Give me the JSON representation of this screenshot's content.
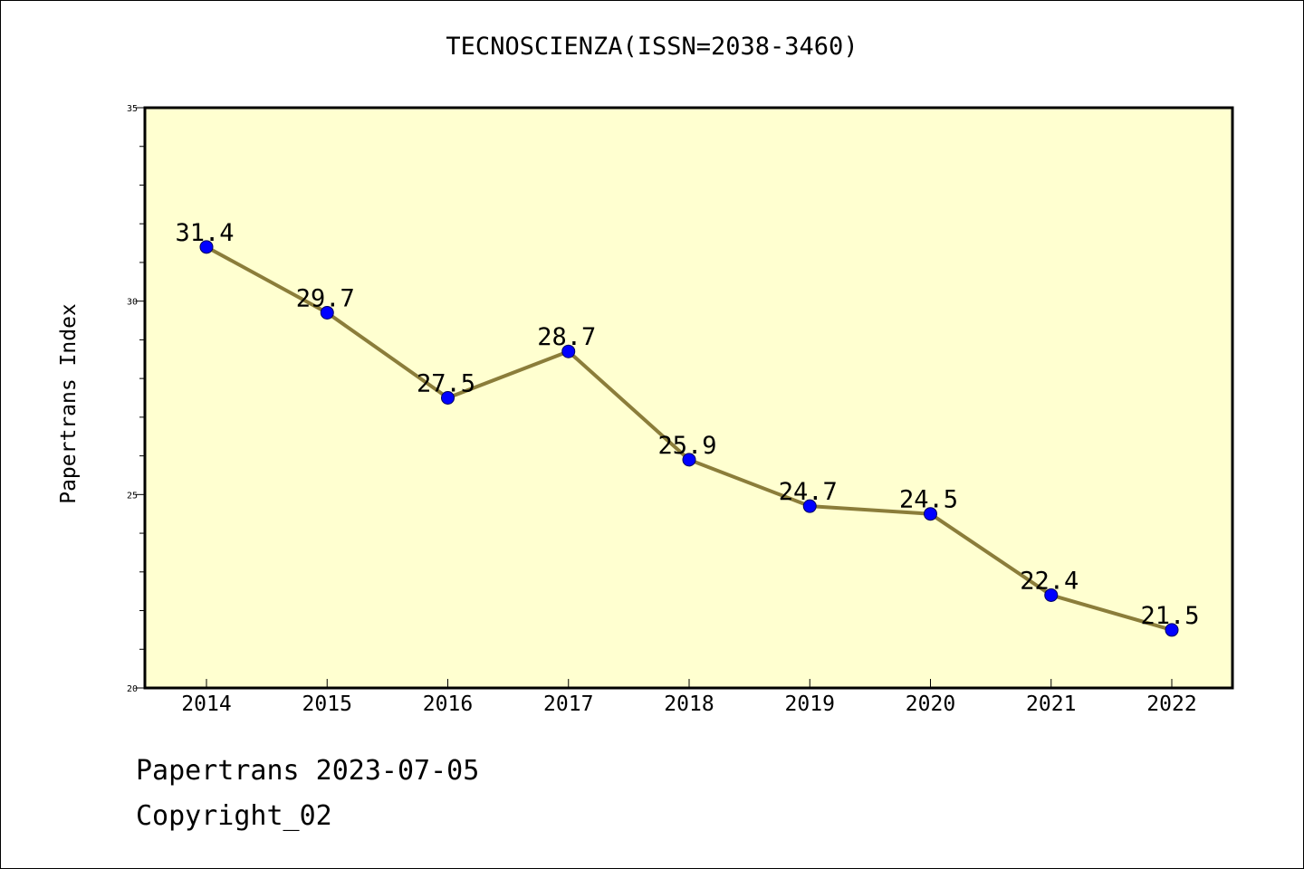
{
  "chart_data": {
    "type": "line",
    "title": "TECNOSCIENZA(ISSN=2038-3460)",
    "xlabel": "",
    "ylabel": "Papertrans Index",
    "categories": [
      "2014",
      "2015",
      "2016",
      "2017",
      "2018",
      "2019",
      "2020",
      "2021",
      "2022"
    ],
    "values": [
      31.4,
      29.7,
      27.5,
      28.7,
      25.9,
      24.7,
      24.5,
      22.4,
      21.5
    ],
    "data_labels": [
      "31.4",
      "29.7",
      "27.5",
      "28.7",
      "25.9",
      "24.7",
      "24.5",
      "22.4",
      "21.5"
    ],
    "ylim": [
      20,
      35
    ],
    "yticks": [
      "20",
      "25",
      "30",
      "35"
    ],
    "grid": false,
    "legend": "none",
    "colors": {
      "line": "#8b7d3a",
      "marker": "#0000ff",
      "plot_background": "#ffffd0"
    }
  },
  "footer": {
    "date_line": "Papertrans 2023-07-05",
    "copyright": "Copyright_02"
  }
}
